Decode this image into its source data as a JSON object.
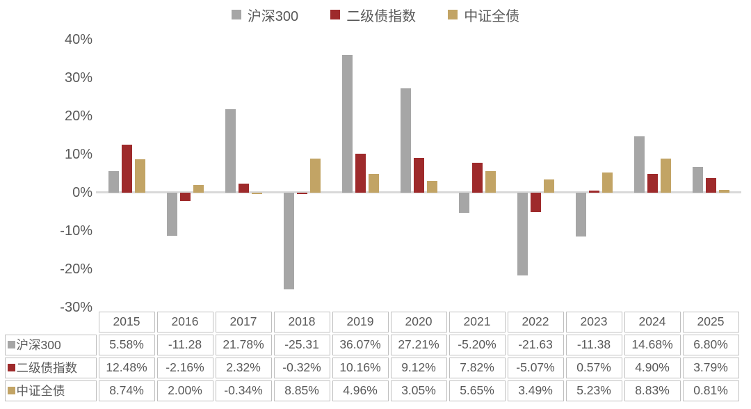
{
  "chart_data": {
    "type": "bar",
    "title": "",
    "xlabel": "",
    "ylabel": "",
    "categories": [
      "2015",
      "2016",
      "2017",
      "2018",
      "2019",
      "2020",
      "2021",
      "2022",
      "2023",
      "2024",
      "2025"
    ],
    "series": [
      {
        "name": "沪深300",
        "color": "#A6A6A6",
        "values": [
          5.58,
          -11.28,
          21.78,
          -25.31,
          36.07,
          27.21,
          -5.2,
          -21.63,
          -11.38,
          14.68,
          6.8
        ],
        "cell_labels": [
          "5.58%",
          "-11.28",
          "21.78%",
          "-25.31",
          "36.07%",
          "27.21%",
          "-5.20%",
          "-21.63",
          "-11.38",
          "14.68%",
          "6.80%"
        ]
      },
      {
        "name": "二级债指数",
        "color": "#9E2A2B",
        "values": [
          12.48,
          -2.16,
          2.32,
          -0.32,
          10.16,
          9.12,
          7.82,
          -5.07,
          0.57,
          4.9,
          3.79
        ],
        "cell_labels": [
          "12.48%",
          "-2.16%",
          "2.32%",
          "-0.32%",
          "10.16%",
          "9.12%",
          "7.82%",
          "-5.07%",
          "0.57%",
          "4.90%",
          "3.79%"
        ]
      },
      {
        "name": "中证全债",
        "color": "#C2A465",
        "values": [
          8.74,
          2.0,
          -0.34,
          8.85,
          4.96,
          3.05,
          5.65,
          3.49,
          5.23,
          8.83,
          0.81
        ],
        "cell_labels": [
          "8.74%",
          "2.00%",
          "-0.34%",
          "8.85%",
          "4.96%",
          "3.05%",
          "5.65%",
          "3.49%",
          "5.23%",
          "8.83%",
          "0.81%"
        ]
      }
    ],
    "ylim": [
      -30,
      40
    ],
    "yticks": [
      {
        "value": 40,
        "label": "40%"
      },
      {
        "value": 30,
        "label": "30%"
      },
      {
        "value": 20,
        "label": "20%"
      },
      {
        "value": 10,
        "label": "10%"
      },
      {
        "value": 0,
        "label": "0%"
      },
      {
        "value": -10,
        "label": "-10%"
      },
      {
        "value": -20,
        "label": "-20%"
      },
      {
        "value": -30,
        "label": "-30%"
      }
    ],
    "grid": false,
    "legend_position": "top-center",
    "has_data_table": true,
    "colors": {
      "axis_line": "#D9D9D9",
      "text": "#595959",
      "table_border": "#BFBFBF",
      "background": "#FFFFFF"
    }
  }
}
